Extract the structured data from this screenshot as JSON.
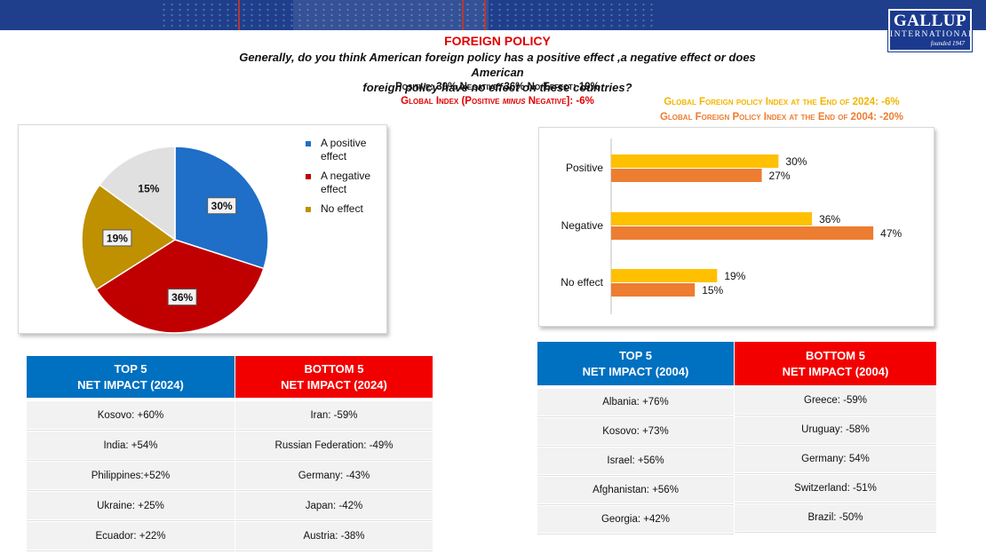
{
  "brand": {
    "name": "GALLUP",
    "sub": "INTERNATIONAL",
    "founded": "founded 1947"
  },
  "header": {
    "title": "FOREIGN POLICY",
    "question_line1": "Generally, do you think American foreign policy has a positive effect ,a negative effect or does American",
    "question_line2": "foreign policy have no effect on these countries?",
    "summary": "Positive: 30% Negative: 36% No Effect: 19%",
    "global_index_prefix": "Global  Index (Positive",
    "global_index_minus": "minus",
    "global_index_suffix": "Negative]: -6%",
    "index_2024": "Global Foreign policy Index at the End of 2024: -6%",
    "index_2004": "Global Foreign Policy  Index at the End of 2004: -20%"
  },
  "colors": {
    "positive": "#1f6ec8",
    "negative": "#c00000",
    "no_effect": "#bf9000",
    "unlabeled": "#e0e0e0",
    "year2024": "#ffc000",
    "year2004": "#ed7d31"
  },
  "chart_data": [
    {
      "type": "pie",
      "title": "",
      "slices": [
        {
          "label": "A positive effect",
          "value": 30,
          "data_label": "30%",
          "in_legend": true
        },
        {
          "label": "A negative effect",
          "value": 36,
          "data_label": "36%",
          "in_legend": true
        },
        {
          "label": "No effect",
          "value": 19,
          "data_label": "19%",
          "in_legend": true
        },
        {
          "label": "",
          "value": 15,
          "data_label": "15%",
          "in_legend": false
        }
      ],
      "legend": {
        "position": "right",
        "entries": [
          "A positive effect",
          "A negative effect",
          "No effect"
        ]
      }
    },
    {
      "type": "bar",
      "orientation": "horizontal",
      "categories": [
        "Positive",
        "Negative",
        "No effect"
      ],
      "series": [
        {
          "name": "2024",
          "values": [
            30,
            36,
            19
          ],
          "labels": [
            "30%",
            "36%",
            "19%"
          ]
        },
        {
          "name": "2004",
          "values": [
            27,
            47,
            15
          ],
          "labels": [
            "27%",
            "47%",
            "15%"
          ]
        }
      ],
      "xlim": [
        0,
        50
      ],
      "grid": false,
      "legend": "none"
    }
  ],
  "tables": {
    "top2024": {
      "header1": "TOP 5",
      "header2": "NET IMPACT (2024)",
      "rows": [
        "Kosovo: +60%",
        "India: +54%",
        "Philippines:+52%",
        "Ukraine: +25%",
        "Ecuador: +22%"
      ]
    },
    "bottom2024": {
      "header1": "BOTTOM 5",
      "header2": "NET IMPACT (2024)",
      "rows": [
        "Iran: -59%",
        "Russian Federation: -49%",
        "Germany: -43%",
        "Japan: -42%",
        "Austria: -38%"
      ]
    },
    "top2004": {
      "header1": "TOP 5",
      "header2": "NET IMPACT (2004)",
      "rows": [
        "Albania: +76%",
        "Kosovo: +73%",
        "Israel: +56%",
        "Afghanistan: +56%",
        "Georgia: +42%"
      ]
    },
    "bottom2004": {
      "header1": "BOTTOM 5",
      "header2": "NET IMPACT (2004)",
      "rows": [
        "Greece: -59%",
        "Uruguay: -58%",
        "Germany: 54%",
        "Switzerland: -51%",
        "Brazil: -50%"
      ]
    }
  }
}
